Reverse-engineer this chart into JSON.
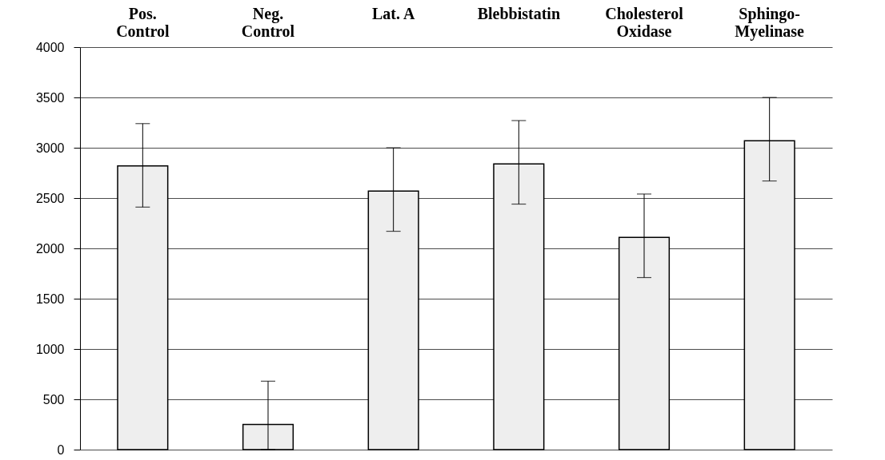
{
  "chart_data": {
    "type": "bar",
    "categories": [
      "Pos.\nControl",
      "Neg.\nControl",
      "Lat. A",
      "Blebbistatin",
      "Cholesterol\nOxidase",
      "Sphingo-\nMyelinase"
    ],
    "values": [
      2820,
      250,
      2570,
      2840,
      2110,
      3070
    ],
    "errors": [
      [
        2410,
        3240
      ],
      [
        0,
        680
      ],
      [
        2170,
        3000
      ],
      [
        2440,
        3270
      ],
      [
        1710,
        2540
      ],
      [
        2670,
        3500
      ]
    ],
    "color": "#eeeeee",
    "ylim": [
      0,
      4000
    ],
    "yticks": [
      0,
      500,
      1000,
      1500,
      2000,
      2500,
      3000,
      3500,
      4000
    ],
    "grid": "y"
  }
}
